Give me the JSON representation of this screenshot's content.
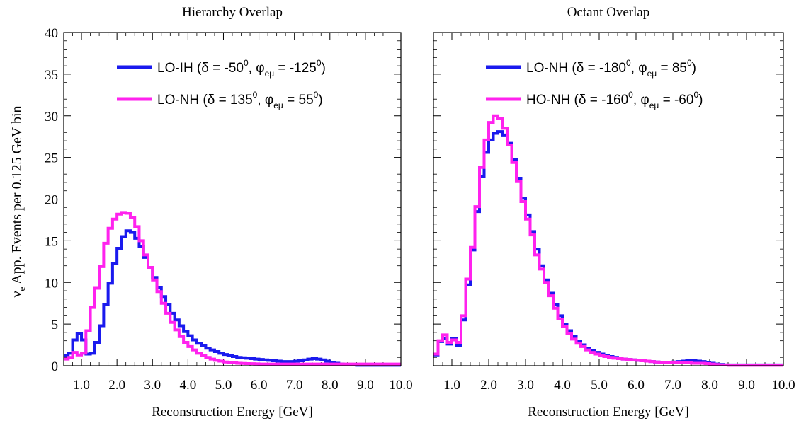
{
  "figure": {
    "ylabel_main": "ν",
    "ylabel_sub": "e",
    "ylabel_rest": " App. Events per 0.125 GeV bin"
  },
  "chart_data": [
    {
      "type": "line",
      "step": true,
      "title": "Hierarchy Overlap",
      "xlabel": "Reconstruction Energy [GeV]",
      "ylabel": "νe App. Events per 0.125 GeV bin",
      "xlim": [
        0.5,
        10.0
      ],
      "ylim": [
        0,
        40
      ],
      "xticks": [
        1.0,
        2.0,
        3.0,
        4.0,
        5.0,
        6.0,
        7.0,
        8.0,
        9.0,
        10.0
      ],
      "xtick_labels": [
        "1.0",
        "2.0",
        "3.0",
        "4.0",
        "5.0",
        "6.0",
        "7.0",
        "8.0",
        "9.0",
        "10.0"
      ],
      "yticks": [
        0,
        5,
        10,
        15,
        20,
        25,
        30,
        35,
        40
      ],
      "ytick_labels": [
        "0",
        "5",
        "10",
        "15",
        "20",
        "25",
        "30",
        "35",
        "40"
      ],
      "legend_position": "top-right",
      "bin_width": 0.125,
      "x_start": 0.5,
      "series": [
        {
          "name": "LO-IH",
          "legend": {
            "prefix": "LO-IH  (",
            "delta": "-50",
            "phi": "-125"
          },
          "color": "#1a1aee",
          "values": [
            1.2,
            1.5,
            3.1,
            3.9,
            3.1,
            1.4,
            1.5,
            2.8,
            4.8,
            7.3,
            9.9,
            12.3,
            14.1,
            15.5,
            16.2,
            16.0,
            15.3,
            14.3,
            13.0,
            11.8,
            10.6,
            9.4,
            8.3,
            7.3,
            6.3,
            5.5,
            4.8,
            4.1,
            3.6,
            3.1,
            2.7,
            2.4,
            2.1,
            1.9,
            1.7,
            1.5,
            1.35,
            1.2,
            1.1,
            1.0,
            0.95,
            0.9,
            0.85,
            0.8,
            0.75,
            0.7,
            0.65,
            0.6,
            0.55,
            0.5,
            0.5,
            0.5,
            0.55,
            0.6,
            0.7,
            0.8,
            0.85,
            0.8,
            0.7,
            0.55,
            0.4,
            0.3,
            0.2,
            0.15,
            0.1,
            0.1,
            0.05,
            0.05,
            0.05,
            0.05,
            0.05,
            0.05,
            0.05,
            0.05,
            0.05,
            0.05
          ]
        },
        {
          "name": "LO-NH",
          "legend": {
            "prefix": "LO-NH  (",
            "delta": "135",
            "phi": "55"
          },
          "color": "#ff22ee",
          "values": [
            0.8,
            1.0,
            1.6,
            1.3,
            1.5,
            4.2,
            7.0,
            9.3,
            11.9,
            14.7,
            16.5,
            17.6,
            18.2,
            18.4,
            18.3,
            17.8,
            16.7,
            15.0,
            13.3,
            11.8,
            10.3,
            8.9,
            7.5,
            6.3,
            5.2,
            4.3,
            3.5,
            2.8,
            2.3,
            1.9,
            1.5,
            1.2,
            1.0,
            0.8,
            0.65,
            0.55,
            0.45,
            0.4,
            0.35,
            0.3,
            0.28,
            0.26,
            0.24,
            0.22,
            0.2,
            0.2,
            0.2,
            0.2,
            0.2,
            0.2,
            0.2,
            0.2,
            0.2,
            0.2,
            0.2,
            0.2,
            0.2,
            0.2,
            0.2,
            0.2,
            0.2,
            0.2,
            0.2,
            0.2,
            0.2,
            0.2,
            0.2,
            0.2,
            0.2,
            0.2,
            0.2,
            0.2,
            0.2,
            0.2,
            0.2,
            0.2
          ]
        }
      ]
    },
    {
      "type": "line",
      "step": true,
      "title": "Octant Overlap",
      "xlabel": "Reconstruction Energy [GeV]",
      "xlim": [
        0.5,
        10.0
      ],
      "ylim": [
        0,
        40
      ],
      "xticks": [
        1.0,
        2.0,
        3.0,
        4.0,
        5.0,
        6.0,
        7.0,
        8.0,
        9.0,
        10.0
      ],
      "xtick_labels": [
        "1.0",
        "2.0",
        "3.0",
        "4.0",
        "5.0",
        "6.0",
        "7.0",
        "8.0",
        "9.0",
        "10.0"
      ],
      "yticks": [
        0,
        5,
        10,
        15,
        20,
        25,
        30,
        35,
        40
      ],
      "ytick_labels": [],
      "legend_position": "top-right",
      "bin_width": 0.125,
      "x_start": 0.5,
      "series": [
        {
          "name": "LO-NH",
          "legend": {
            "prefix": "LO-NH  (",
            "delta": "-180",
            "phi": "85"
          },
          "color": "#1a1aee",
          "values": [
            1.3,
            2.9,
            3.3,
            2.6,
            3.3,
            2.4,
            5.5,
            9.7,
            13.9,
            18.5,
            22.7,
            25.6,
            27.1,
            27.9,
            28.1,
            27.7,
            26.7,
            24.8,
            22.5,
            20.1,
            18.1,
            16.1,
            14.0,
            12.0,
            10.3,
            8.7,
            7.3,
            6.0,
            5.0,
            4.2,
            3.5,
            2.9,
            2.5,
            2.1,
            1.8,
            1.6,
            1.4,
            1.25,
            1.1,
            1.0,
            0.9,
            0.8,
            0.75,
            0.7,
            0.65,
            0.6,
            0.55,
            0.5,
            0.45,
            0.4,
            0.4,
            0.4,
            0.45,
            0.5,
            0.55,
            0.6,
            0.6,
            0.55,
            0.5,
            0.4,
            0.3,
            0.2,
            0.15,
            0.1,
            0.1,
            0.1,
            0.1,
            0.1,
            0.1,
            0.1,
            0.1,
            0.1,
            0.1,
            0.1,
            0.1,
            0.1
          ]
        },
        {
          "name": "HO-NH",
          "legend": {
            "prefix": "HO-NH  (",
            "delta": "-160",
            "phi": "-60"
          },
          "color": "#ff22ee",
          "values": [
            1.4,
            3.0,
            3.7,
            2.8,
            3.1,
            2.8,
            6.0,
            10.4,
            14.2,
            19.1,
            23.8,
            27.1,
            29.2,
            30.0,
            29.7,
            28.5,
            26.5,
            24.4,
            22.1,
            19.7,
            17.6,
            15.7,
            13.3,
            11.6,
            10.0,
            8.4,
            6.9,
            5.6,
            4.7,
            3.9,
            3.2,
            2.7,
            2.3,
            1.9,
            1.6,
            1.4,
            1.25,
            1.1,
            1.0,
            0.9,
            0.85,
            0.8,
            0.75,
            0.7,
            0.65,
            0.6,
            0.55,
            0.5,
            0.45,
            0.4,
            0.35,
            0.35,
            0.35,
            0.35,
            0.35,
            0.35,
            0.3,
            0.3,
            0.3,
            0.25,
            0.2,
            0.15,
            0.1,
            0.1,
            0.05,
            0.05,
            0.05,
            0.05,
            0.05,
            0.05,
            0.05,
            0.05,
            0.05,
            0.05,
            0.05,
            0.05
          ]
        }
      ]
    }
  ]
}
